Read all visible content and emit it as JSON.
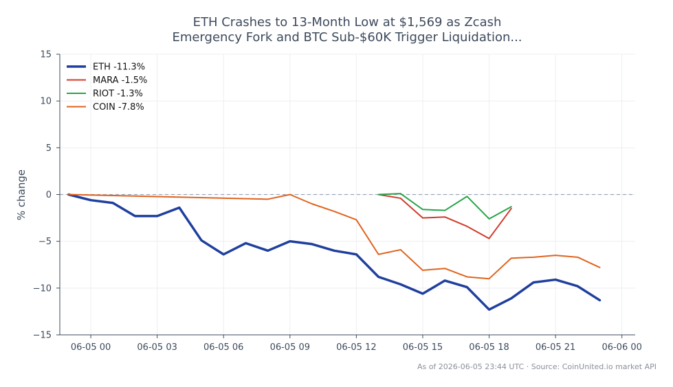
{
  "chart_data": {
    "type": "line",
    "title_lines": [
      "ETH Crashes to 13-Month Low at $1,569 as Zcash",
      "Emergency Fork and BTC Sub-$60K Trigger Liquidation..."
    ],
    "xlabel": "",
    "ylabel": "% change",
    "ylim": [
      -15,
      15
    ],
    "yticks": [
      15,
      10,
      5,
      0,
      -5,
      -10,
      -15
    ],
    "ytick_labels": [
      "15",
      "10",
      "5",
      "0",
      "−5",
      "−10",
      "−15"
    ],
    "xlim": [
      -1.4,
      24.6
    ],
    "xticks": [
      0,
      3,
      6,
      9,
      12,
      15,
      18,
      21,
      24
    ],
    "xtick_labels": [
      "06-05 00",
      "06-05 03",
      "06-05 06",
      "06-05 09",
      "06-05 12",
      "06-05 15",
      "06-05 18",
      "06-05 21",
      "06-06 00"
    ],
    "grid": true,
    "legend_position": "top-left",
    "footer": "As of 2026-06-05 23:44 UTC · Source: CoinUnited.io market API",
    "series": [
      {
        "name": "ETH -11.3%",
        "color": "#1f3f9e",
        "width": 3.5,
        "x": [
          -1,
          0,
          1,
          2,
          3,
          4,
          5,
          6,
          7,
          8,
          9,
          10,
          11,
          12,
          13,
          14,
          15,
          16,
          17,
          18,
          19,
          20,
          21,
          22,
          23
        ],
        "values": [
          0,
          -0.6,
          -0.9,
          -2.3,
          -2.3,
          -1.4,
          -4.9,
          -6.4,
          -5.2,
          -6.0,
          -5.0,
          -5.3,
          -6.0,
          -6.4,
          -8.8,
          -9.6,
          -10.6,
          -9.2,
          -9.9,
          -12.3,
          -11.1,
          -9.4,
          -9.1,
          -9.8,
          -11.3
        ]
      },
      {
        "name": "MARA -1.5%",
        "color": "#d03a2a",
        "width": 2,
        "x": [
          13,
          14,
          15,
          16,
          17,
          18,
          19
        ],
        "values": [
          0,
          -0.4,
          -2.5,
          -2.4,
          -3.4,
          -4.7,
          -1.5
        ]
      },
      {
        "name": "RIOT -1.3%",
        "color": "#27a348",
        "width": 2,
        "x": [
          13,
          14,
          15,
          16,
          17,
          18,
          19
        ],
        "values": [
          0,
          0.1,
          -1.6,
          -1.7,
          -0.2,
          -2.6,
          -1.3
        ]
      },
      {
        "name": "COIN -7.8%",
        "color": "#e0621c",
        "width": 2,
        "x": [
          -1,
          8,
          9,
          10,
          11,
          12,
          13,
          14,
          15,
          16,
          17,
          18,
          19,
          20,
          21,
          22,
          23
        ],
        "values": [
          0,
          -0.5,
          0,
          -1.0,
          -1.8,
          -2.7,
          -6.4,
          -5.9,
          -8.1,
          -7.9,
          -8.8,
          -9.0,
          -6.8,
          -6.7,
          -6.5,
          -6.7,
          -7.8
        ]
      }
    ]
  }
}
